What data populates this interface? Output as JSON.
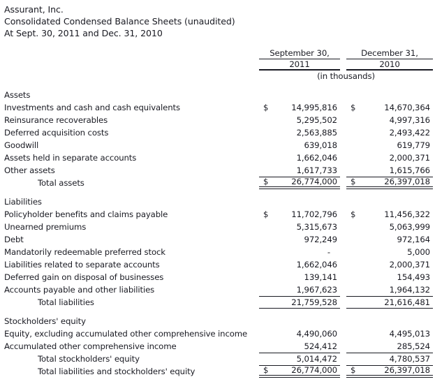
{
  "header": {
    "company": "Assurant, Inc.",
    "report_title": "Consolidated Condensed Balance Sheets (unaudited)",
    "report_date_line": "At Sept. 30, 2011 and Dec. 31, 2010"
  },
  "table": {
    "currency_symbol": "$",
    "units_note": "(in thousands)",
    "columns": [
      {
        "line1": "September 30,",
        "line2": "2011"
      },
      {
        "line1": "December 31,",
        "line2": "2010"
      }
    ],
    "rows": [
      {
        "type": "section",
        "label": "Assets"
      },
      {
        "type": "item",
        "label": "Investments and cash and cash equivalents",
        "dollar": true,
        "v2011": "14,995,816",
        "v2010": "14,670,364"
      },
      {
        "type": "item",
        "label": "Reinsurance recoverables",
        "v2011": "5,295,502",
        "v2010": "4,997,316"
      },
      {
        "type": "item",
        "label": "Deferred acquisition costs",
        "v2011": "2,563,885",
        "v2010": "2,493,422"
      },
      {
        "type": "item",
        "label": "Goodwill",
        "v2011": "639,018",
        "v2010": "619,779"
      },
      {
        "type": "item",
        "label": "Assets held in separate accounts",
        "v2011": "1,662,046",
        "v2010": "2,000,371"
      },
      {
        "type": "item",
        "label": "Other assets",
        "v2011": "1,617,733",
        "v2010": "1,615,766"
      },
      {
        "type": "grandtotal",
        "label": "Total assets",
        "dollar": true,
        "v2011": "26,774,000",
        "v2010": "26,397,018"
      },
      {
        "type": "section",
        "label": "Liabilities"
      },
      {
        "type": "item",
        "label": "Policyholder benefits and claims payable",
        "dollar": true,
        "v2011": "11,702,796",
        "v2010": "11,456,322"
      },
      {
        "type": "item",
        "label": "Unearned premiums",
        "v2011": "5,315,673",
        "v2010": "5,063,999"
      },
      {
        "type": "item",
        "label": "Debt",
        "v2011": "972,249",
        "v2010": "972,164"
      },
      {
        "type": "item",
        "label": "Mandatorily redeemable preferred stock",
        "v2011": "-",
        "v2010": "5,000"
      },
      {
        "type": "item",
        "label": "Liabilities related to separate accounts",
        "v2011": "1,662,046",
        "v2010": "2,000,371"
      },
      {
        "type": "item",
        "label": "Deferred gain on disposal of businesses",
        "v2011": "139,141",
        "v2010": "154,493"
      },
      {
        "type": "item",
        "label": "Accounts payable and other liabilities",
        "v2011": "1,967,623",
        "v2010": "1,964,132"
      },
      {
        "type": "total",
        "label": "Total liabilities",
        "v2011": "21,759,528",
        "v2010": "21,616,481"
      },
      {
        "type": "section",
        "label": "Stockholders' equity"
      },
      {
        "type": "item",
        "label": "Equity, excluding accumulated other comprehensive income",
        "v2011": "4,490,060",
        "v2010": "4,495,013"
      },
      {
        "type": "item",
        "label": "Accumulated other comprehensive income",
        "v2011": "524,412",
        "v2010": "285,524"
      },
      {
        "type": "subtotal",
        "label": "Total stockholders' equity",
        "v2011": "5,014,472",
        "v2010": "4,780,537"
      },
      {
        "type": "grandtotal",
        "label": "Total liabilities and stockholders' equity",
        "dollar": true,
        "v2011": "26,774,000",
        "v2010": "26,397,018"
      }
    ]
  }
}
